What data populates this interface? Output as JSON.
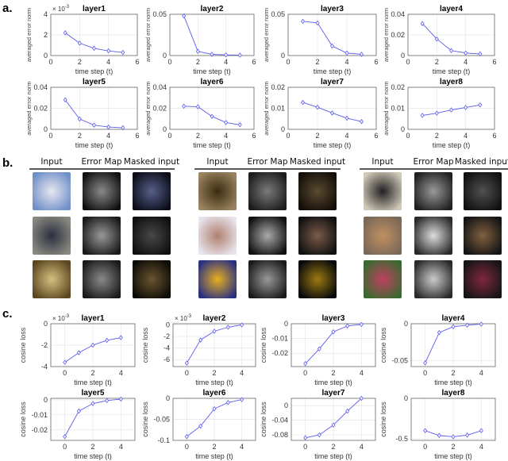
{
  "section_labels": {
    "a": "a.",
    "b": "b.",
    "c": "c."
  },
  "series_color": "#5b5bf0",
  "b": {
    "groups": [
      {
        "headers": [
          "Input",
          "Error Map",
          "Masked input"
        ]
      },
      {
        "headers": [
          "Input",
          "Error Map",
          "Masked input"
        ]
      },
      {
        "headers": [
          "Input",
          "Error Map",
          "Masked input"
        ]
      }
    ]
  },
  "chart_data": [
    {
      "panel": "a",
      "type": "line",
      "title": "layer1",
      "xlabel": "time step (t)",
      "ylabel": "averaged error norm",
      "exponent": "× 10",
      "exponent_power": "-3",
      "x": [
        1,
        2,
        3,
        4,
        5
      ],
      "values": [
        2.2,
        1.2,
        0.7,
        0.45,
        0.3
      ],
      "xlim": [
        0,
        6
      ],
      "ylim": [
        0,
        4
      ],
      "xticks": [
        0,
        2,
        4,
        6
      ],
      "xtick_labels": [
        "0",
        "2",
        "4",
        "6"
      ],
      "yticks": [
        0,
        2,
        4
      ],
      "ytick_labels": [
        "0",
        "2",
        "4"
      ],
      "grid": true
    },
    {
      "panel": "a",
      "type": "line",
      "title": "layer2",
      "xlabel": "time step (t)",
      "ylabel": "averaged error norm",
      "x": [
        1,
        2,
        3,
        4,
        5
      ],
      "values": [
        0.048,
        0.005,
        0.0015,
        0.0008,
        0.0005
      ],
      "xlim": [
        0,
        6
      ],
      "ylim": [
        0,
        0.05
      ],
      "xticks": [
        0,
        2,
        4,
        6
      ],
      "xtick_labels": [
        "0",
        "2",
        "4",
        "6"
      ],
      "yticks": [
        0,
        0.05
      ],
      "ytick_labels": [
        "0",
        "0.05"
      ],
      "grid": true
    },
    {
      "panel": "a",
      "type": "line",
      "title": "layer3",
      "xlabel": "time step (t)",
      "ylabel": "averaged error norm",
      "x": [
        1,
        2,
        3,
        4,
        5
      ],
      "values": [
        0.0415,
        0.0395,
        0.0115,
        0.003,
        0.0015
      ],
      "xlim": [
        0,
        6
      ],
      "ylim": [
        0,
        0.05
      ],
      "xticks": [
        0,
        2,
        4,
        6
      ],
      "xtick_labels": [
        "0",
        "2",
        "4",
        "6"
      ],
      "yticks": [
        0,
        0.05
      ],
      "ytick_labels": [
        "0",
        "0.05"
      ],
      "grid": true
    },
    {
      "panel": "a",
      "type": "line",
      "title": "layer4",
      "xlabel": "time step (t)",
      "ylabel": "averaged error norm",
      "x": [
        1,
        2,
        3,
        4,
        5
      ],
      "values": [
        0.031,
        0.016,
        0.0048,
        0.0025,
        0.0015
      ],
      "xlim": [
        0,
        6
      ],
      "ylim": [
        0,
        0.04
      ],
      "xticks": [
        0,
        2,
        4,
        6
      ],
      "xtick_labels": [
        "0",
        "2",
        "4",
        "6"
      ],
      "yticks": [
        0,
        0.02,
        0.04
      ],
      "ytick_labels": [
        "0",
        "0.02",
        "0.04"
      ],
      "grid": true
    },
    {
      "panel": "a",
      "type": "line",
      "title": "layer5",
      "xlabel": "time step (t)",
      "ylabel": "averaged error norm",
      "x": [
        1,
        2,
        3,
        4,
        5
      ],
      "values": [
        0.028,
        0.0098,
        0.004,
        0.0022,
        0.0015
      ],
      "xlim": [
        0,
        6
      ],
      "ylim": [
        0,
        0.04
      ],
      "xticks": [
        0,
        2,
        4,
        6
      ],
      "xtick_labels": [
        "0",
        "2",
        "4",
        "6"
      ],
      "yticks": [
        0,
        0.02,
        0.04
      ],
      "ytick_labels": [
        "0",
        "0.02",
        "0.04"
      ],
      "grid": true
    },
    {
      "panel": "a",
      "type": "line",
      "title": "layer6",
      "xlabel": "time step (t)",
      "ylabel": "averaged error norm",
      "x": [
        1,
        2,
        3,
        4,
        5
      ],
      "values": [
        0.022,
        0.0215,
        0.0123,
        0.0065,
        0.0043
      ],
      "xlim": [
        0,
        6
      ],
      "ylim": [
        0,
        0.04
      ],
      "xticks": [
        0,
        2,
        4,
        6
      ],
      "xtick_labels": [
        "0",
        "2",
        "4",
        "6"
      ],
      "yticks": [
        0,
        0.02,
        0.04
      ],
      "ytick_labels": [
        "0",
        "0.02",
        "0.04"
      ],
      "grid": true
    },
    {
      "panel": "a",
      "type": "line",
      "title": "layer7",
      "xlabel": "time step (t)",
      "ylabel": "averaged error norm",
      "x": [
        1,
        2,
        3,
        4,
        5
      ],
      "values": [
        0.0128,
        0.0105,
        0.0078,
        0.0053,
        0.0037
      ],
      "xlim": [
        0,
        6
      ],
      "ylim": [
        0,
        0.02
      ],
      "xticks": [
        0,
        2,
        4,
        6
      ],
      "xtick_labels": [
        "0",
        "2",
        "4",
        "6"
      ],
      "yticks": [
        0,
        0.01,
        0.02
      ],
      "ytick_labels": [
        "0",
        "0.01",
        "0.02"
      ],
      "grid": true
    },
    {
      "panel": "a",
      "type": "line",
      "title": "layer8",
      "xlabel": "time step (t)",
      "ylabel": "averaged error norm",
      "x": [
        1,
        2,
        3,
        4,
        5
      ],
      "values": [
        0.0066,
        0.0077,
        0.0092,
        0.0104,
        0.0116
      ],
      "xlim": [
        0,
        6
      ],
      "ylim": [
        0,
        0.02
      ],
      "xticks": [
        0,
        2,
        4,
        6
      ],
      "xtick_labels": [
        "0",
        "2",
        "4",
        "6"
      ],
      "yticks": [
        0,
        0.01,
        0.02
      ],
      "ytick_labels": [
        "0",
        "0.01",
        "0.02"
      ],
      "grid": true
    },
    {
      "panel": "c",
      "type": "line",
      "title": "layer1",
      "xlabel": "time step (t)",
      "ylabel": "cosine loss",
      "exponent": "× 10",
      "exponent_power": "-3",
      "x": [
        0,
        1,
        2,
        3,
        4
      ],
      "values": [
        -3.6,
        -2.7,
        -2.0,
        -1.55,
        -1.3
      ],
      "xlim": [
        -1,
        5
      ],
      "ylim": [
        -4,
        0
      ],
      "xticks": [
        0,
        2,
        4
      ],
      "xtick_labels": [
        "0",
        "2",
        "4"
      ],
      "yticks": [
        -4,
        -2,
        0
      ],
      "ytick_labels": [
        "-4",
        "-2",
        "0"
      ],
      "grid": true
    },
    {
      "panel": "c",
      "type": "line",
      "title": "layer2",
      "xlabel": "time step (t)",
      "ylabel": "cosine loss",
      "exponent": "× 10",
      "exponent_power": "-3",
      "x": [
        0,
        1,
        2,
        3,
        4
      ],
      "values": [
        -6.6,
        -2.6,
        -1.1,
        -0.4,
        0.0
      ],
      "xlim": [
        -1,
        5
      ],
      "ylim": [
        -7.2,
        0.2
      ],
      "xticks": [
        0,
        2,
        4
      ],
      "xtick_labels": [
        "0",
        "2",
        "4"
      ],
      "yticks": [
        -6,
        -4,
        -2,
        0
      ],
      "ytick_labels": [
        "-6",
        "-4",
        "-2",
        "0"
      ],
      "grid": true
    },
    {
      "panel": "c",
      "type": "line",
      "title": "layer3",
      "xlabel": "time step (t)",
      "ylabel": "cosine loss",
      "x": [
        0,
        1,
        2,
        3,
        4
      ],
      "values": [
        -0.027,
        -0.017,
        -0.0055,
        -0.0015,
        -0.0005
      ],
      "xlim": [
        -1,
        5
      ],
      "ylim": [
        -0.029,
        0
      ],
      "xticks": [
        0,
        2,
        4
      ],
      "xtick_labels": [
        "0",
        "2",
        "4"
      ],
      "yticks": [
        -0.02,
        -0.01,
        0
      ],
      "ytick_labels": [
        "-0.02",
        "-0.01",
        "0"
      ],
      "grid": true
    },
    {
      "panel": "c",
      "type": "line",
      "title": "layer4",
      "xlabel": "time step (t)",
      "ylabel": "cosine loss",
      "x": [
        0,
        1,
        2,
        3,
        4
      ],
      "values": [
        -0.053,
        -0.012,
        -0.004,
        -0.002,
        -0.0005
      ],
      "xlim": [
        -1,
        5
      ],
      "ylim": [
        -0.058,
        0
      ],
      "xticks": [
        0,
        2,
        4
      ],
      "xtick_labels": [
        "0",
        "2",
        "4"
      ],
      "yticks": [
        -0.05,
        0
      ],
      "ytick_labels": [
        "-0.05",
        "0"
      ],
      "grid": true
    },
    {
      "panel": "c",
      "type": "line",
      "title": "layer5",
      "xlabel": "time step (t)",
      "ylabel": "cosine loss",
      "x": [
        0,
        1,
        2,
        3,
        4
      ],
      "values": [
        -0.0245,
        -0.0075,
        -0.0025,
        -0.0005,
        0.0005
      ],
      "xlim": [
        -1,
        5
      ],
      "ylim": [
        -0.027,
        0.001
      ],
      "xticks": [
        0,
        2,
        4
      ],
      "xtick_labels": [
        "0",
        "2",
        "4"
      ],
      "yticks": [
        -0.02,
        -0.01,
        0
      ],
      "ytick_labels": [
        "-0.02",
        "-0.01",
        "0"
      ],
      "grid": true
    },
    {
      "panel": "c",
      "type": "line",
      "title": "layer6",
      "xlabel": "time step (t)",
      "ylabel": "cosine loss",
      "x": [
        0,
        1,
        2,
        3,
        4
      ],
      "values": [
        -0.091,
        -0.066,
        -0.025,
        -0.01,
        -0.003
      ],
      "xlim": [
        -1,
        5
      ],
      "ylim": [
        -0.1,
        0
      ],
      "xticks": [
        0,
        2,
        4
      ],
      "xtick_labels": [
        "0",
        "2",
        "4"
      ],
      "yticks": [
        -0.1,
        -0.05,
        0
      ],
      "ytick_labels": [
        "-0.1",
        "-0.05",
        "0"
      ],
      "grid": true
    },
    {
      "panel": "c",
      "type": "line",
      "title": "layer7",
      "xlabel": "time step (t)",
      "ylabel": "cosine loss",
      "x": [
        0,
        1,
        2,
        3,
        4
      ],
      "values": [
        -0.088,
        -0.08,
        -0.053,
        -0.015,
        0.02
      ],
      "xlim": [
        -1,
        5
      ],
      "ylim": [
        -0.095,
        0.02
      ],
      "xticks": [
        0,
        2,
        4
      ],
      "xtick_labels": [
        "0",
        "2",
        "4"
      ],
      "yticks": [
        -0.08,
        -0.04,
        0
      ],
      "ytick_labels": [
        "-0.08",
        "-0.04",
        "0"
      ],
      "grid": true
    },
    {
      "panel": "c",
      "type": "line",
      "title": "layer8",
      "xlabel": "time step (t)",
      "ylabel": "cosine loss",
      "x": [
        0,
        1,
        2,
        3,
        4
      ],
      "values": [
        -0.4,
        -0.46,
        -0.475,
        -0.455,
        -0.4
      ],
      "xlim": [
        -1,
        5
      ],
      "ylim": [
        -0.52,
        0
      ],
      "xticks": [
        0,
        2,
        4
      ],
      "xtick_labels": [
        "0",
        "2",
        "4"
      ],
      "yticks": [
        -0.5,
        0
      ],
      "ytick_labels": [
        "-0.5",
        "0"
      ],
      "grid": true
    }
  ]
}
